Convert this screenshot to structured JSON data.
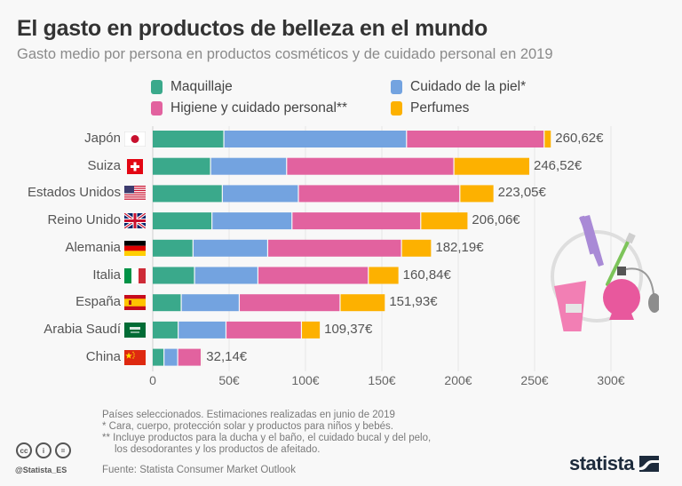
{
  "chart_data": {
    "type": "bar",
    "orientation": "horizontal",
    "stacked": true,
    "title": "El gasto en productos de belleza en el mundo",
    "subtitle": "Gasto medio por persona en productos cosméticos y de cuidado personal en 2019",
    "xlabel": "",
    "ylabel": "",
    "xlim": [
      0,
      300
    ],
    "x_ticks": [
      0,
      50,
      100,
      150,
      200,
      250,
      300
    ],
    "x_tick_labels": [
      "0",
      "50€",
      "100€",
      "150€",
      "200€",
      "250€",
      "300€"
    ],
    "grid": true,
    "legend_position": "top",
    "categories": [
      "Japón",
      "Suiza",
      "Estados Unidos",
      "Reino Unido",
      "Alemania",
      "Italia",
      "España",
      "Arabia Saudí",
      "China"
    ],
    "flags": [
      "japan-flag",
      "switzerland-flag",
      "usa-flag",
      "uk-flag",
      "germany-flag",
      "italy-flag",
      "spain-flag",
      "saudi-arabia-flag",
      "china-flag"
    ],
    "series": [
      {
        "name": "Maquillaje",
        "color": "#3aa98b",
        "values": [
          46.9,
          38.2,
          45.9,
          39.1,
          26.7,
          27.7,
          19.0,
          17.0,
          7.7
        ]
      },
      {
        "name": "Cuidado de la piel*",
        "color": "#73a3e0",
        "values": [
          119.6,
          49.8,
          49.8,
          52.4,
          48.9,
          41.5,
          38.0,
          31.3,
          9.0
        ]
      },
      {
        "name": "Higiene y cuidado personal**",
        "color": "#e2629f",
        "values": [
          90.1,
          109.5,
          105.7,
          84.3,
          87.6,
          72.3,
          66.0,
          49.4,
          15.4
        ]
      },
      {
        "name": "Perfumes",
        "color": "#fdb100",
        "values": [
          4.02,
          49.02,
          21.65,
          30.26,
          18.99,
          19.34,
          28.93,
          11.67,
          0.04
        ]
      }
    ],
    "totals": [
      260.62,
      246.52,
      223.05,
      206.06,
      182.19,
      160.84,
      151.93,
      109.37,
      32.14
    ],
    "total_labels": [
      "260,62€",
      "246,52€",
      "223,05€",
      "206,06€",
      "182,19€",
      "160,84€",
      "151,93€",
      "109,37€",
      "32,14€"
    ]
  },
  "footer": {
    "notes": [
      "Países seleccionados. Estimaciones realizadas en junio de 2019",
      "*   Cara, cuerpo, protección solar y productos para niños y bebés.",
      "** Incluye productos para la ducha y el baño, el cuidado bucal y del pelo,",
      "    los desodorantes y los productos de afeitado."
    ],
    "source": "Fuente: Statista Consumer Market Outlook",
    "handle": "@Statista_ES",
    "license_icons": [
      "cc",
      "by",
      "nd"
    ],
    "logo_text": "statista"
  },
  "illustration": "beauty-products-illustration"
}
